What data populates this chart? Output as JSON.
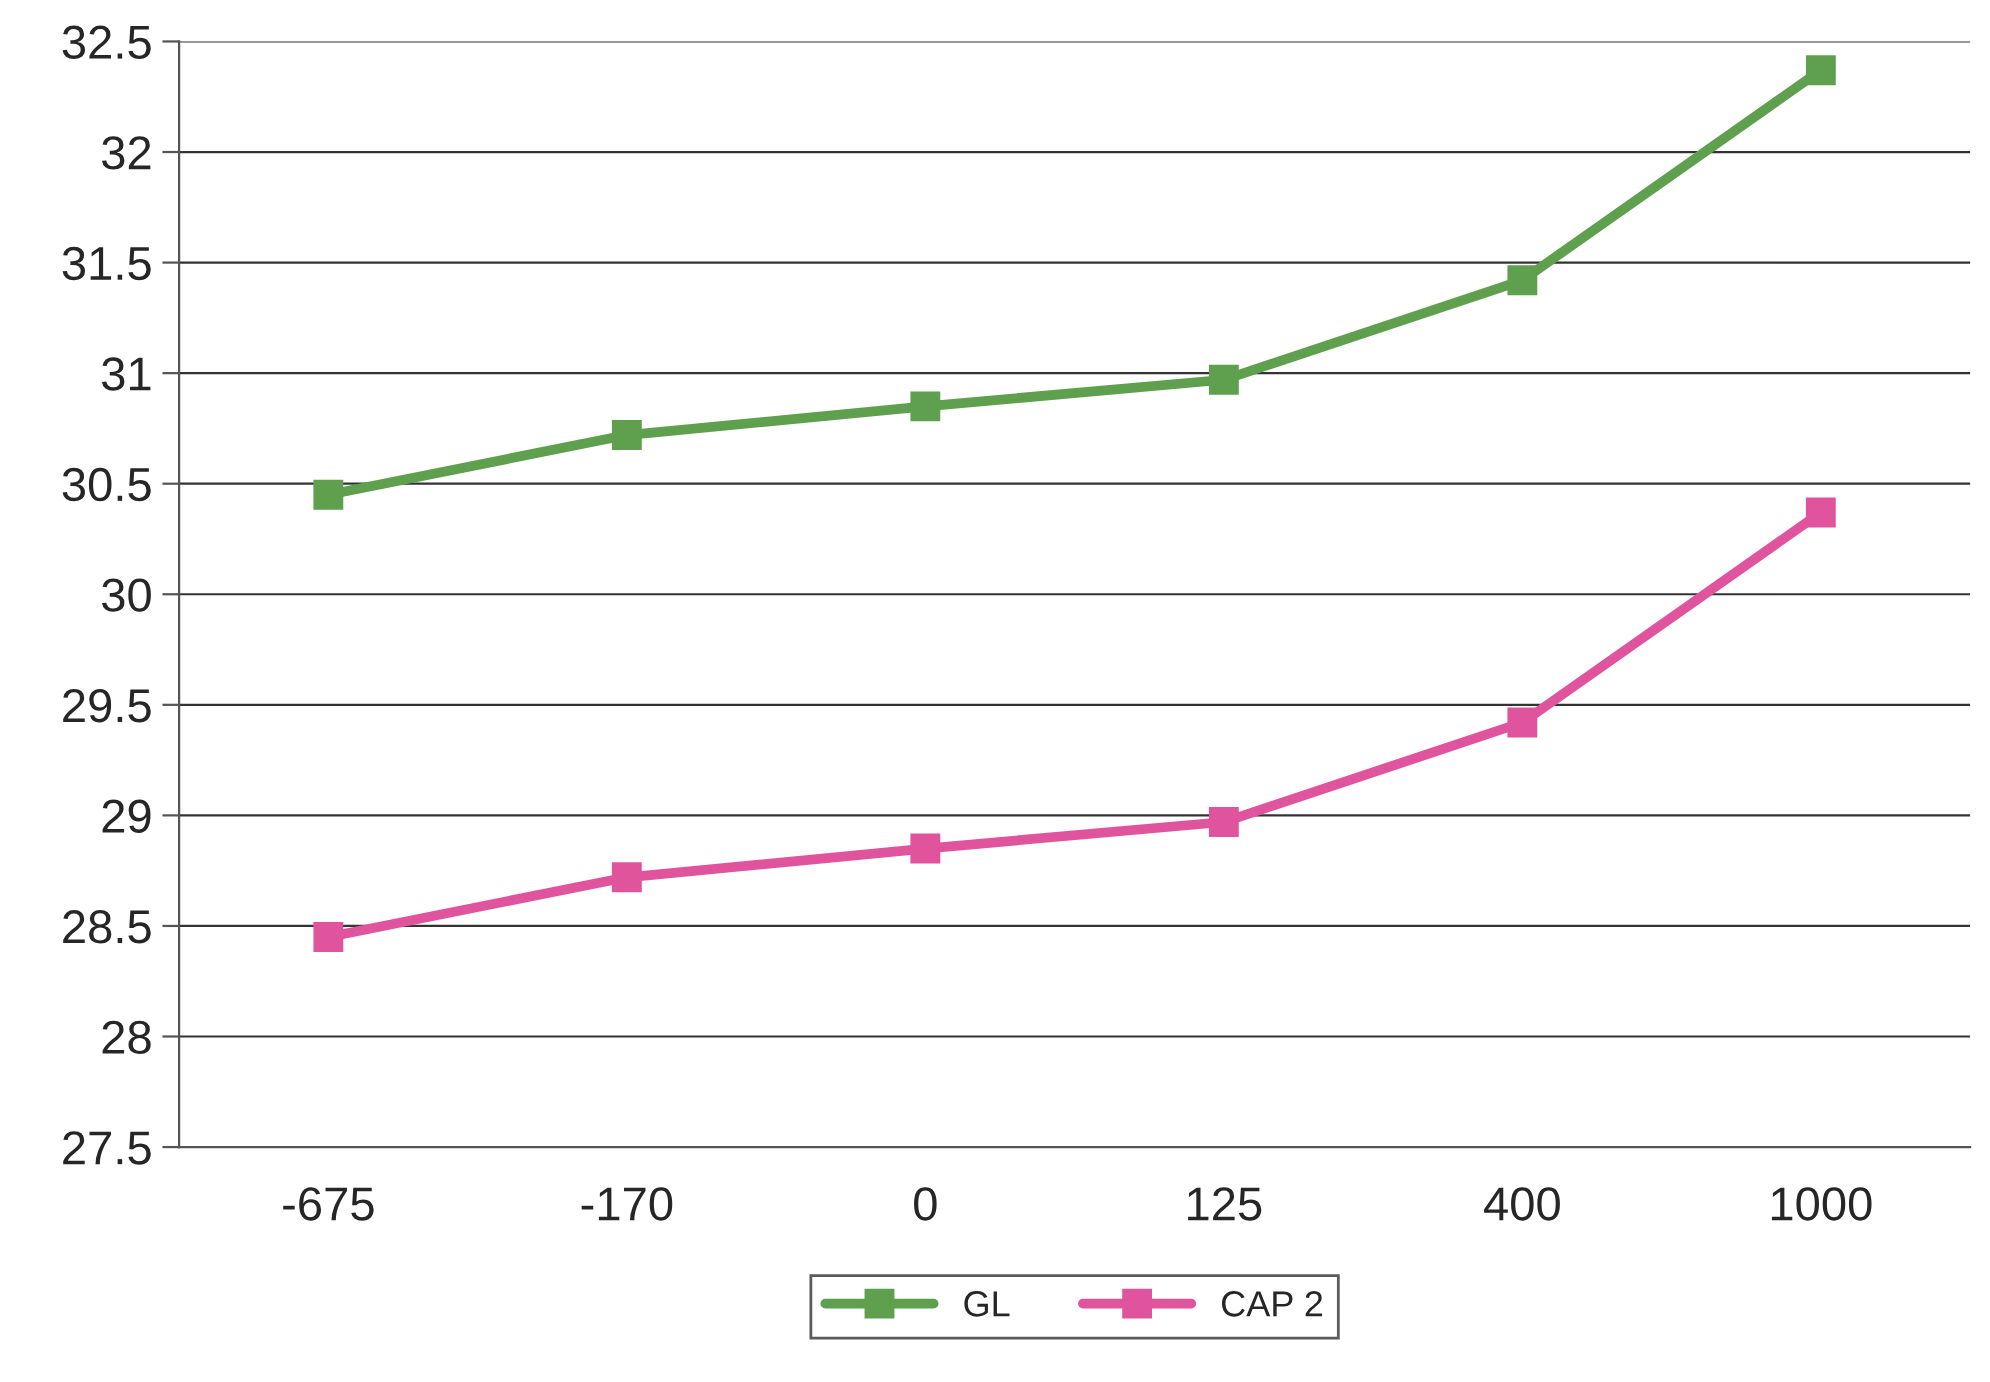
{
  "chart_data": {
    "type": "line",
    "categories": [
      "-675",
      "-170",
      "0",
      "125",
      "400",
      "1000"
    ],
    "series": [
      {
        "name": "GL",
        "color": "#5fa04e",
        "values": [
          30.45,
          30.72,
          30.85,
          30.97,
          31.42,
          32.37
        ]
      },
      {
        "name": "CAP 2",
        "color": "#e0549e",
        "values": [
          28.45,
          28.72,
          28.85,
          28.97,
          29.42,
          30.37
        ]
      }
    ],
    "ylim": [
      27.5,
      32.5
    ],
    "yticks": [
      27.5,
      28,
      28.5,
      29,
      29.5,
      30,
      30.5,
      31,
      31.5,
      32,
      32.5
    ],
    "grid": "y",
    "legend": "bottom",
    "marker": "square",
    "line_style": "solid"
  }
}
